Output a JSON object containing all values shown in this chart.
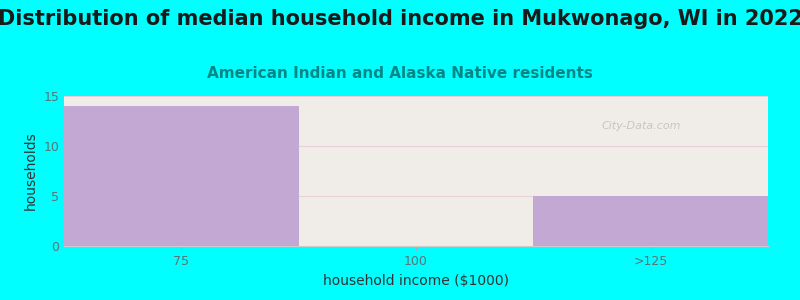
{
  "title": "Distribution of median household income in Mukwonago, WI in 2022",
  "subtitle": "American Indian and Alaska Native residents",
  "xlabel": "household income ($1000)",
  "ylabel": "households",
  "categories": [
    "75",
    "100",
    ">125"
  ],
  "values": [
    14,
    0,
    5
  ],
  "bar_colors": [
    "#c4a8d4",
    "#e8f2dc",
    "#c4a8d4"
  ],
  "background_color": "#00ffff",
  "plot_bg_color": "#f0ede8",
  "ylim": [
    0,
    15
  ],
  "yticks": [
    0,
    5,
    10,
    15
  ],
  "grid_color": "#e8d0d8",
  "title_fontsize": 15,
  "subtitle_fontsize": 11,
  "subtitle_color": "#008888",
  "axis_label_fontsize": 10,
  "tick_label_color": "#557777",
  "watermark": "City-Data.com"
}
